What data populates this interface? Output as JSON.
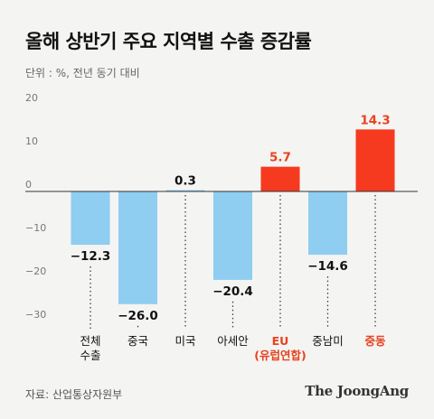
{
  "title": "올해 상반기 주요 지역별 수출 증감률",
  "unit_label": "단위 : %, 전년 동기 대비",
  "source": "자료: 산업통상자원부",
  "logo": "The JoongAng",
  "colors": {
    "negative": "#8fcdf1",
    "positive_zero": "#8fcdf1",
    "positive": "#f53a1f",
    "positive_label": "#e8421f",
    "axis": "#333333",
    "tick": "#777777",
    "background": "#f4f4f2"
  },
  "chart_data": {
    "type": "bar",
    "title": "올해 상반기 주요 지역별 수출 증감률",
    "xlabel": "",
    "ylabel": "",
    "ylim": [
      -35,
      20
    ],
    "yticks": [
      20,
      10,
      0,
      -10,
      -20,
      -30
    ],
    "grid": false,
    "categories": [
      [
        "전체",
        "수출"
      ],
      [
        "중국"
      ],
      [
        "미국"
      ],
      [
        "아세안"
      ],
      [
        "EU",
        "(유럽연합)"
      ],
      [
        "중남미"
      ],
      [
        "중동"
      ]
    ],
    "values": [
      -12.3,
      -26.0,
      0.3,
      -20.4,
      5.7,
      -14.6,
      14.3
    ],
    "value_labels": [
      "−12.3",
      "−26.0",
      "0.3",
      "−20.4",
      "5.7",
      "−14.6",
      "14.3"
    ],
    "highlighted": [
      false,
      false,
      false,
      false,
      true,
      false,
      true
    ]
  }
}
